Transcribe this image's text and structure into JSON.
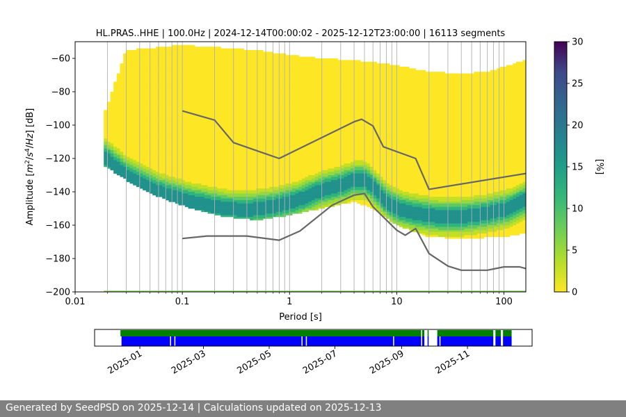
{
  "chart_data": [
    {
      "type": "heatmap",
      "title": "HL.PRAS..HHE | 100.0Hz | 2024-12-14T00:00:02 - 2025-12-12T23:00:00 | 16113 segments",
      "xlabel": "Period [s]",
      "ylabel": "Amplitude [m²/s⁴/Hz] [dB]",
      "xscale": "log",
      "xlim": [
        0.01,
        160
      ],
      "ylim": [
        -200,
        -50
      ],
      "xticks": [
        {
          "v": 0.01,
          "label": "0.01"
        },
        {
          "v": 0.1,
          "label": "0.1"
        },
        {
          "v": 1,
          "label": "1"
        },
        {
          "v": 10,
          "label": "10"
        },
        {
          "v": 100,
          "label": "100"
        }
      ],
      "yticks": [
        {
          "v": -60,
          "label": "−60"
        },
        {
          "v": -80,
          "label": "−80"
        },
        {
          "v": -100,
          "label": "−100"
        },
        {
          "v": -120,
          "label": "−120"
        },
        {
          "v": -140,
          "label": "−140"
        },
        {
          "v": -160,
          "label": "−160"
        },
        {
          "v": -180,
          "label": "−180"
        },
        {
          "v": -200,
          "label": "−200"
        }
      ],
      "grid": "x",
      "colorbar": {
        "label": "[%]",
        "min": 0,
        "max": 30,
        "ticks": [
          "0",
          "5",
          "10",
          "15",
          "20",
          "25",
          "30"
        ],
        "colormap": "viridis_r"
      },
      "series": [
        {
          "points": [
            [
              0.1,
              -91.5
            ],
            [
              0.2,
              -97
            ],
            [
              0.3,
              -110.5
            ],
            [
              0.8,
              -120
            ],
            [
              4.0,
              -98
            ],
            [
              4.7,
              -96.5
            ],
            [
              6.0,
              -100.5
            ],
            [
              7.5,
              -113
            ],
            [
              15,
              -120
            ],
            [
              20,
              -138.5
            ],
            [
              160,
              -129
            ]
          ],
          "color": "#666666"
        },
        {
          "points": [
            [
              0.1,
              -168
            ],
            [
              0.17,
              -166.5
            ],
            [
              0.4,
              -166.5
            ],
            [
              0.8,
              -169
            ],
            [
              1.25,
              -163.5
            ],
            [
              2.5,
              -148
            ],
            [
              4.0,
              -142
            ],
            [
              5.0,
              -141
            ],
            [
              6.0,
              -149
            ],
            [
              10,
              -163
            ],
            [
              12,
              -166
            ],
            [
              15,
              -162
            ],
            [
              20,
              -177
            ],
            [
              30,
              -184.5
            ],
            [
              40,
              -187
            ],
            [
              70,
              -187
            ],
            [
              100,
              -185
            ],
            [
              140,
              -185
            ],
            [
              160,
              -186
            ]
          ],
          "color": "#666666"
        }
      ],
      "density": {
        "mode": [
          [
            0.0185,
            -119
          ],
          [
            0.03,
            -130
          ],
          [
            0.06,
            -140
          ],
          [
            0.12,
            -146
          ],
          [
            0.25,
            -150
          ],
          [
            0.4,
            -151
          ],
          [
            0.7,
            -149
          ],
          [
            1.2,
            -145
          ],
          [
            2.0,
            -139
          ],
          [
            3.0,
            -136
          ],
          [
            4.0,
            -133
          ],
          [
            5.0,
            -133
          ],
          [
            6.0,
            -137
          ],
          [
            8.0,
            -146
          ],
          [
            10,
            -150
          ],
          [
            15,
            -153
          ],
          [
            25,
            -155
          ],
          [
            40,
            -155
          ],
          [
            70,
            -153
          ],
          [
            110,
            -150
          ],
          [
            160,
            -145
          ]
        ],
        "upper_envelope": [
          [
            0.0185,
            -94
          ],
          [
            0.03,
            -55
          ],
          [
            0.1,
            -52
          ],
          [
            0.5,
            -55
          ],
          [
            1.0,
            -58
          ],
          [
            2.0,
            -60
          ],
          [
            4.0,
            -61
          ],
          [
            10,
            -64
          ],
          [
            20,
            -68
          ],
          [
            40,
            -69
          ],
          [
            70,
            -68
          ],
          [
            100,
            -65
          ],
          [
            160,
            -61
          ]
        ],
        "lower_envelope": [
          [
            0.0185,
            -124
          ],
          [
            0.03,
            -133
          ],
          [
            0.06,
            -143
          ],
          [
            0.12,
            -150
          ],
          [
            0.25,
            -155
          ],
          [
            0.5,
            -157
          ],
          [
            1.0,
            -154
          ],
          [
            2.0,
            -150
          ],
          [
            4.0,
            -146
          ],
          [
            6.0,
            -150
          ],
          [
            10,
            -160
          ],
          [
            20,
            -167
          ],
          [
            40,
            -168
          ],
          [
            100,
            -167
          ],
          [
            160,
            -165
          ]
        ]
      }
    },
    {
      "type": "timeline",
      "xticks": [
        "2025-01",
        "2025-03",
        "2025-05",
        "2025-07",
        "2025-09",
        "2025-11"
      ],
      "xrange": [
        "2024-11-20",
        "2025-12-31"
      ],
      "green_spans": [
        [
          "2024-12-14",
          "2025-09-19"
        ],
        [
          "2025-09-20",
          "2025-09-22"
        ],
        [
          "2025-09-25",
          "2025-09-26"
        ],
        [
          "2025-10-04",
          "2025-11-25"
        ],
        [
          "2025-11-27",
          "2025-12-02"
        ],
        [
          "2025-12-04",
          "2025-12-12"
        ]
      ],
      "blue_spans": [
        [
          "2024-12-15",
          "2025-01-29"
        ],
        [
          "2025-01-30",
          "2025-02-02"
        ],
        [
          "2025-02-03",
          "2025-05-31"
        ],
        [
          "2025-06-01",
          "2025-06-04"
        ],
        [
          "2025-06-05",
          "2025-08-24"
        ],
        [
          "2025-08-25",
          "2025-09-19"
        ],
        [
          "2025-09-20",
          "2025-09-22"
        ],
        [
          "2025-09-25",
          "2025-09-26"
        ],
        [
          "2025-10-04",
          "2025-10-06"
        ],
        [
          "2025-10-07",
          "2025-11-25"
        ],
        [
          "2025-11-27",
          "2025-12-02"
        ],
        [
          "2025-12-04",
          "2025-12-12"
        ]
      ],
      "colors": {
        "green": "#008000",
        "blue": "#0000ff"
      }
    }
  ],
  "footer": {
    "text": "Generated by SeedPSD on 2025-12-14 | Calculations updated on 2025-12-13"
  },
  "colors": {
    "curve": "#666666",
    "grid": "#b0b0b0",
    "footer_bg": "#808080"
  }
}
